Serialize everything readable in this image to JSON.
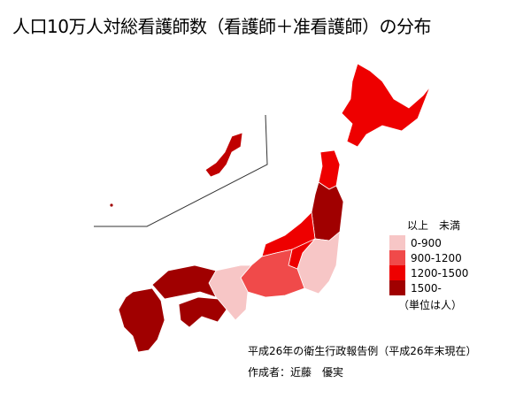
{
  "title": "人口10万人対総看護師数（看護師＋准看護師）の分布",
  "legend": {
    "header": "以上　未満",
    "unit": "（単位は人）",
    "items": [
      {
        "label": "0-900",
        "color": "#f7c6c6"
      },
      {
        "label": "900-1200",
        "color": "#f04a4a"
      },
      {
        "label": "1200-1500",
        "color": "#ee0000"
      },
      {
        "label": "1500-",
        "color": "#a00000"
      }
    ]
  },
  "source": "平成26年の衛生行政報告例（平成26年末現在）",
  "author": "作成者：近藤　優実"
}
